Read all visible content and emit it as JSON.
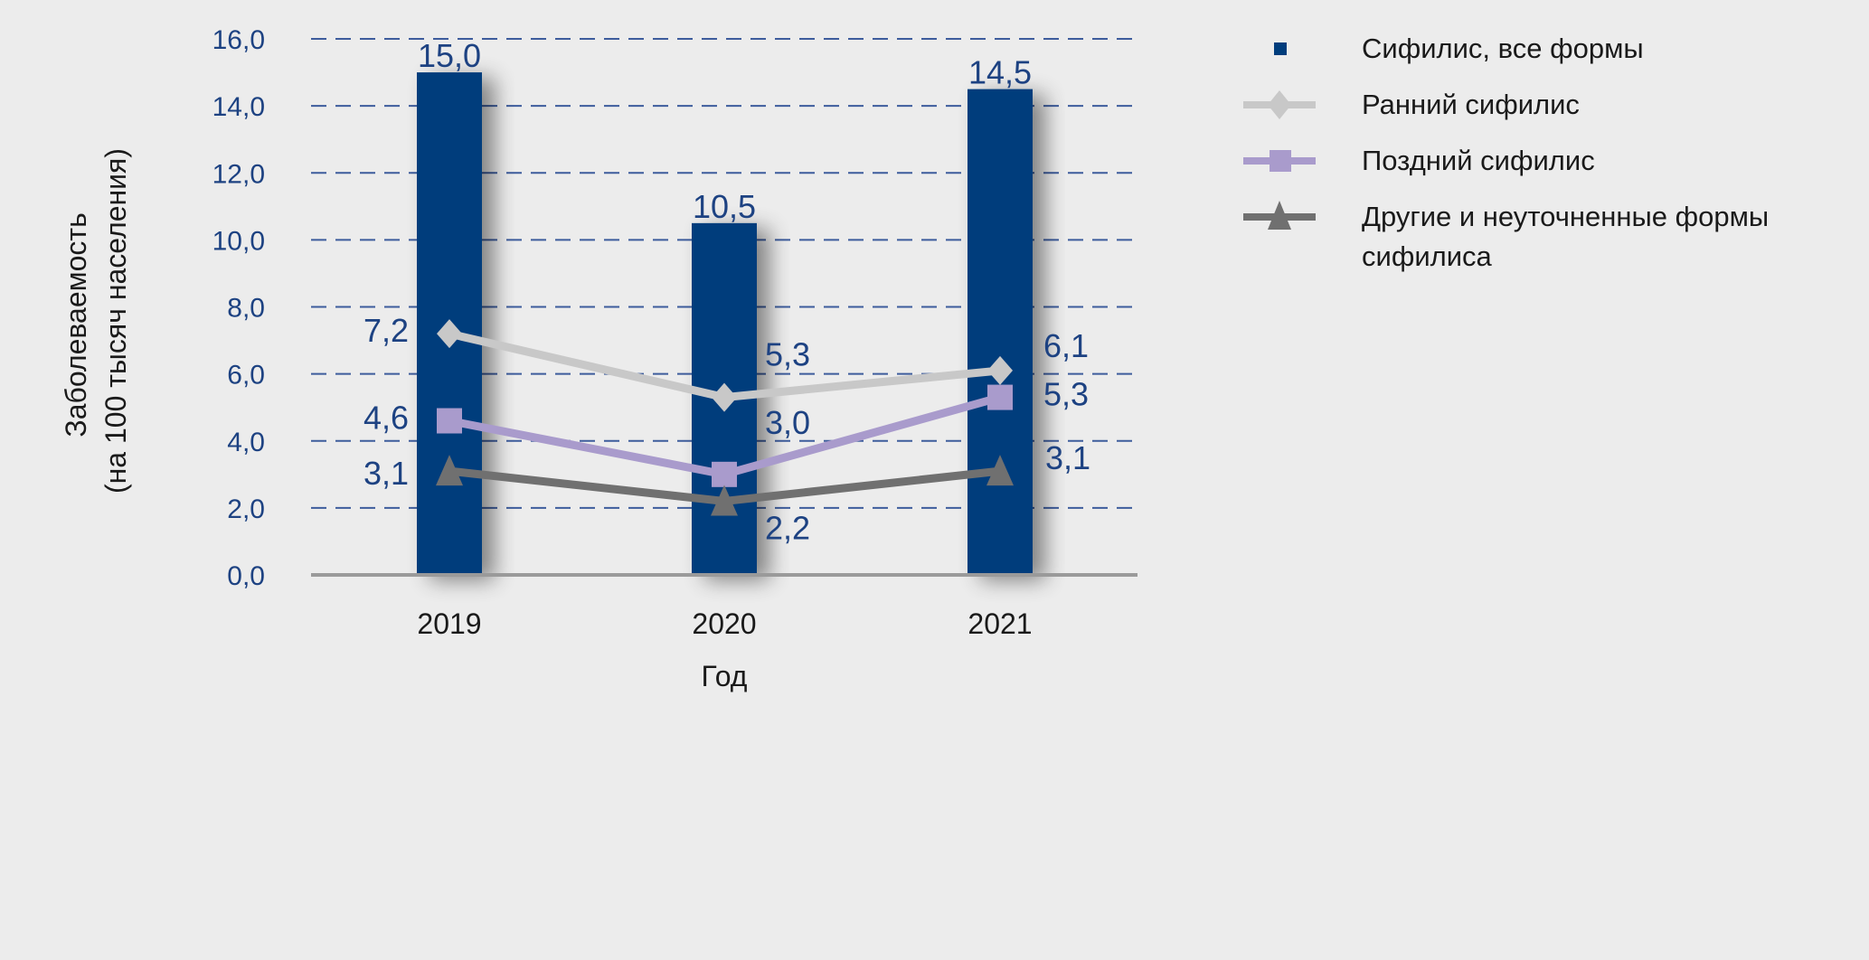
{
  "chart_data": {
    "type": "bar",
    "title": "",
    "xlabel": "Год",
    "ylabel": "Заболеваемость\n(на 100 тысяч населения)",
    "ylabel_lines": [
      "Заболеваемость",
      "(на 100 тысяч населения)"
    ],
    "ylim": [
      0,
      16
    ],
    "yticks": [
      "0,0",
      "2,0",
      "4,0",
      "6,0",
      "8,0",
      "10,0",
      "12,0",
      "14,0",
      "16,0"
    ],
    "ytick_values": [
      0,
      2,
      4,
      6,
      8,
      10,
      12,
      14,
      16
    ],
    "grid": true,
    "categories": [
      "2019",
      "2020",
      "2021"
    ],
    "legend_position": "right",
    "series": [
      {
        "name": "Сифилис, все формы",
        "kind": "bar",
        "color": "#003d7c",
        "marker": "square",
        "values": [
          15.0,
          10.5,
          14.5
        ],
        "labels": [
          "15,0",
          "10,5",
          "14,5"
        ]
      },
      {
        "name": "Ранний сифилис",
        "kind": "line",
        "color": "#c8c8c8",
        "marker": "diamond",
        "values": [
          7.2,
          5.3,
          6.1
        ],
        "labels": [
          "7,2",
          "5,3",
          "6,1"
        ]
      },
      {
        "name": "Поздний сифилис",
        "kind": "line",
        "color": "#a99bcc",
        "marker": "square",
        "values": [
          4.6,
          3.0,
          5.3
        ],
        "labels": [
          "4,6",
          "3,0",
          "5,3"
        ]
      },
      {
        "name": "Другие и неуточненные формы сифилиса",
        "kind": "line",
        "color": "#707070",
        "marker": "triangle",
        "values": [
          3.1,
          2.2,
          3.1
        ],
        "labels": [
          "3,1",
          "2,2",
          "3,1"
        ]
      }
    ]
  },
  "legend": {
    "items": [
      {
        "label": "Сифилис, все формы",
        "icon": "square-marker-icon"
      },
      {
        "label": "Ранний сифилис",
        "icon": "diamond-line-icon"
      },
      {
        "label": "Поздний сифилис",
        "icon": "square-line-icon"
      },
      {
        "label_lines": [
          "Другие и неуточненные формы",
          "сифилиса"
        ],
        "icon": "triangle-line-icon"
      }
    ]
  }
}
